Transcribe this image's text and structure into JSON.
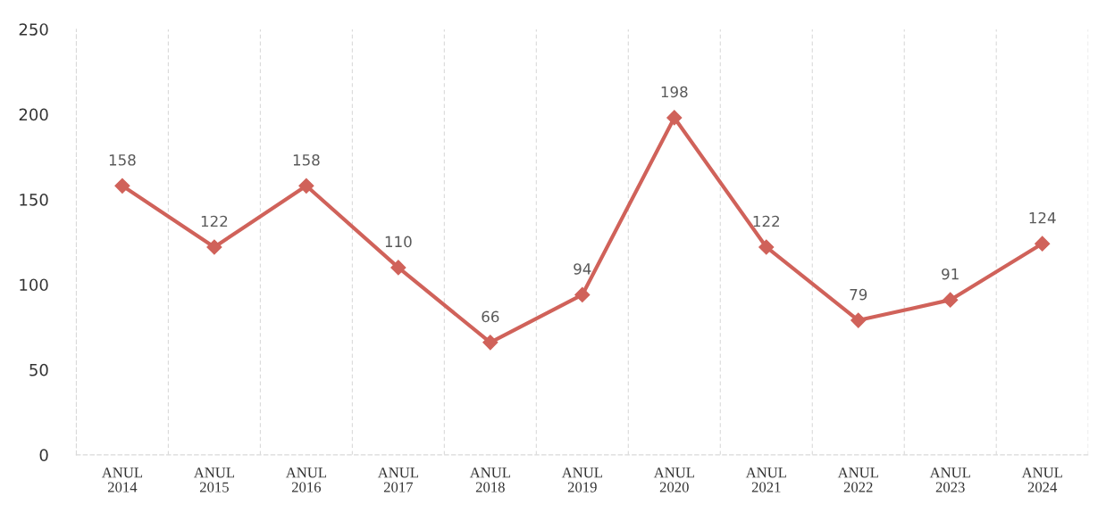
{
  "chart_data": {
    "type": "line",
    "categories": [
      "ANUL\n2014",
      "ANUL\n2015",
      "ANUL\n2016",
      "ANUL\n2017",
      "ANUL\n2018",
      "ANUL\n2019",
      "ANUL\n2020",
      "ANUL\n2021",
      "ANUL\n2022",
      "ANUL\n2023",
      "ANUL\n2024"
    ],
    "series": [
      {
        "color": "#d0625a",
        "values": [
          158,
          122,
          158,
          110,
          66,
          94,
          198,
          122,
          79,
          91,
          124
        ]
      }
    ],
    "ylim": [
      0,
      250
    ],
    "yticks": [
      0,
      50,
      100,
      150,
      200,
      250
    ],
    "grid": "x",
    "marker": "diamond",
    "line_style": "solid",
    "data_labels": true
  }
}
